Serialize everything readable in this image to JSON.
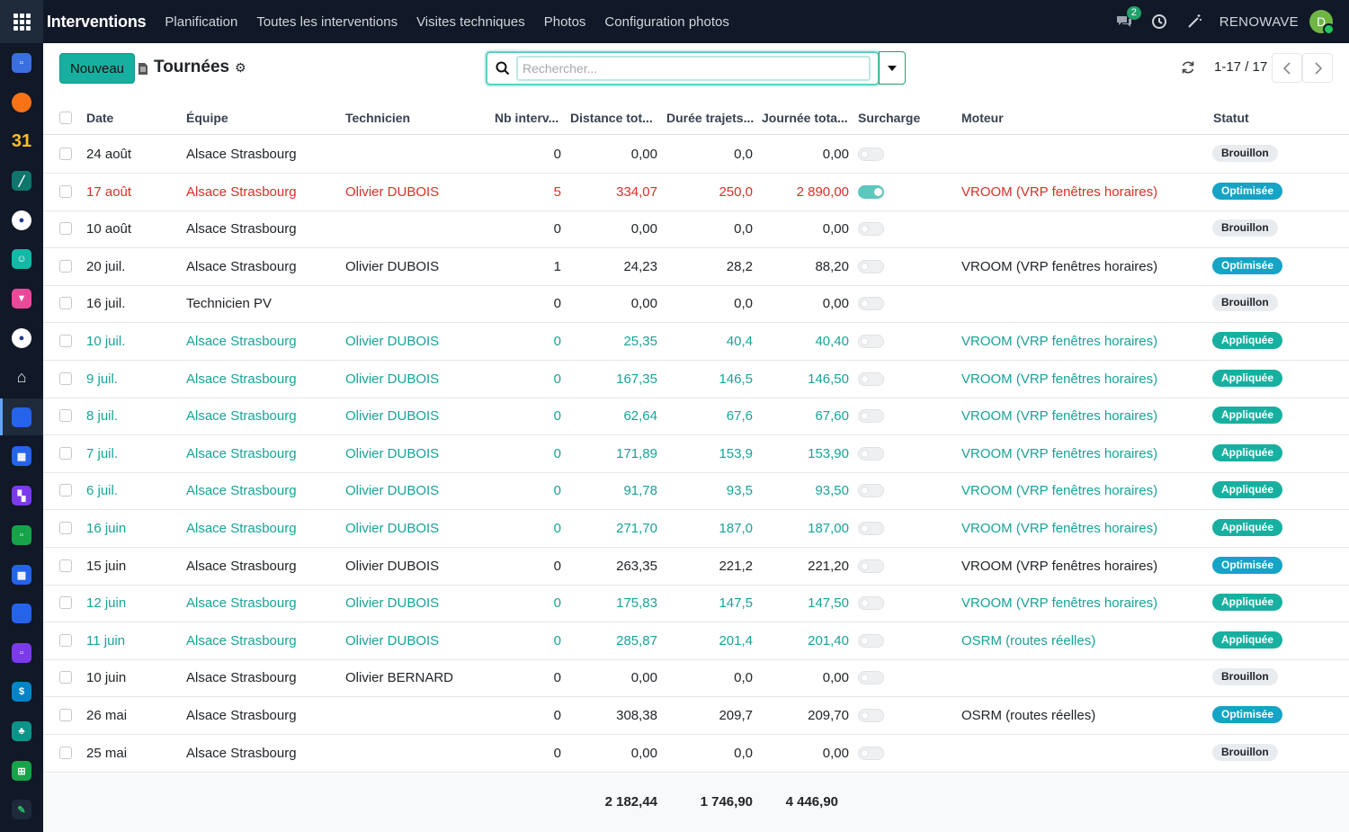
{
  "app": {
    "name": "Interventions",
    "menu": [
      "Planification",
      "Toutes les interventions",
      "Visites techniques",
      "Photos",
      "Configuration photos"
    ],
    "chat_count": "2",
    "company": "RENOWAVE",
    "avatar_letter": "D"
  },
  "control": {
    "new_label": "Nouveau",
    "title": "Tournées",
    "search_placeholder": "Rechercher...",
    "pager": "1-17 / 17"
  },
  "columns": {
    "date": "Date",
    "equipe": "Équipe",
    "technicien": "Technicien",
    "nb": "Nb interv...",
    "distance": "Distance tot...",
    "duree": "Durée trajets...",
    "journee": "Journée tota...",
    "surcharge": "Surcharge",
    "moteur": "Moteur",
    "statut": "Statut"
  },
  "rows": [
    {
      "date": "24 août",
      "equipe": "Alsace Strasbourg",
      "technicien": "",
      "nb": "0",
      "distance": "0,00",
      "duree": "0,0",
      "journee": "0,00",
      "surcharge": false,
      "moteur": "",
      "statut": "Brouillon",
      "tone": "normal"
    },
    {
      "date": "17 août",
      "equipe": "Alsace Strasbourg",
      "technicien": "Olivier DUBOIS",
      "nb": "5",
      "distance": "334,07",
      "duree": "250,0",
      "journee": "2 890,00",
      "surcharge": true,
      "moteur": "VROOM (VRP fenêtres horaires)",
      "statut": "Optimisée",
      "tone": "red"
    },
    {
      "date": "10 août",
      "equipe": "Alsace Strasbourg",
      "technicien": "",
      "nb": "0",
      "distance": "0,00",
      "duree": "0,0",
      "journee": "0,00",
      "surcharge": false,
      "moteur": "",
      "statut": "Brouillon",
      "tone": "normal"
    },
    {
      "date": "20 juil.",
      "equipe": "Alsace Strasbourg",
      "technicien": "Olivier DUBOIS",
      "nb": "1",
      "distance": "24,23",
      "duree": "28,2",
      "journee": "88,20",
      "surcharge": false,
      "moteur": "VROOM (VRP fenêtres horaires)",
      "statut": "Optimisée",
      "tone": "normal"
    },
    {
      "date": "16 juil.",
      "equipe": "Technicien PV",
      "technicien": "",
      "nb": "0",
      "distance": "0,00",
      "duree": "0,0",
      "journee": "0,00",
      "surcharge": false,
      "moteur": "",
      "statut": "Brouillon",
      "tone": "normal"
    },
    {
      "date": "10 juil.",
      "equipe": "Alsace Strasbourg",
      "technicien": "Olivier DUBOIS",
      "nb": "0",
      "distance": "25,35",
      "duree": "40,4",
      "journee": "40,40",
      "surcharge": false,
      "moteur": "VROOM (VRP fenêtres horaires)",
      "statut": "Appliquée",
      "tone": "teal"
    },
    {
      "date": "9 juil.",
      "equipe": "Alsace Strasbourg",
      "technicien": "Olivier DUBOIS",
      "nb": "0",
      "distance": "167,35",
      "duree": "146,5",
      "journee": "146,50",
      "surcharge": false,
      "moteur": "VROOM (VRP fenêtres horaires)",
      "statut": "Appliquée",
      "tone": "teal"
    },
    {
      "date": "8 juil.",
      "equipe": "Alsace Strasbourg",
      "technicien": "Olivier DUBOIS",
      "nb": "0",
      "distance": "62,64",
      "duree": "67,6",
      "journee": "67,60",
      "surcharge": false,
      "moteur": "VROOM (VRP fenêtres horaires)",
      "statut": "Appliquée",
      "tone": "teal"
    },
    {
      "date": "7 juil.",
      "equipe": "Alsace Strasbourg",
      "technicien": "Olivier DUBOIS",
      "nb": "0",
      "distance": "171,89",
      "duree": "153,9",
      "journee": "153,90",
      "surcharge": false,
      "moteur": "VROOM (VRP fenêtres horaires)",
      "statut": "Appliquée",
      "tone": "teal"
    },
    {
      "date": "6 juil.",
      "equipe": "Alsace Strasbourg",
      "technicien": "Olivier DUBOIS",
      "nb": "0",
      "distance": "91,78",
      "duree": "93,5",
      "journee": "93,50",
      "surcharge": false,
      "moteur": "VROOM (VRP fenêtres horaires)",
      "statut": "Appliquée",
      "tone": "teal"
    },
    {
      "date": "16 juin",
      "equipe": "Alsace Strasbourg",
      "technicien": "Olivier DUBOIS",
      "nb": "0",
      "distance": "271,70",
      "duree": "187,0",
      "journee": "187,00",
      "surcharge": false,
      "moteur": "VROOM (VRP fenêtres horaires)",
      "statut": "Appliquée",
      "tone": "teal"
    },
    {
      "date": "15 juin",
      "equipe": "Alsace Strasbourg",
      "technicien": "Olivier DUBOIS",
      "nb": "0",
      "distance": "263,35",
      "duree": "221,2",
      "journee": "221,20",
      "surcharge": false,
      "moteur": "VROOM (VRP fenêtres horaires)",
      "statut": "Optimisée",
      "tone": "normal"
    },
    {
      "date": "12 juin",
      "equipe": "Alsace Strasbourg",
      "technicien": "Olivier DUBOIS",
      "nb": "0",
      "distance": "175,83",
      "duree": "147,5",
      "journee": "147,50",
      "surcharge": false,
      "moteur": "VROOM (VRP fenêtres horaires)",
      "statut": "Appliquée",
      "tone": "teal"
    },
    {
      "date": "11 juin",
      "equipe": "Alsace Strasbourg",
      "technicien": "Olivier DUBOIS",
      "nb": "0",
      "distance": "285,87",
      "duree": "201,4",
      "journee": "201,40",
      "surcharge": false,
      "moteur": "OSRM (routes réelles)",
      "statut": "Appliquée",
      "tone": "teal"
    },
    {
      "date": "10 juin",
      "equipe": "Alsace Strasbourg",
      "technicien": "Olivier BERNARD",
      "nb": "0",
      "distance": "0,00",
      "duree": "0,0",
      "journee": "0,00",
      "surcharge": false,
      "moteur": "",
      "statut": "Brouillon",
      "tone": "normal"
    },
    {
      "date": "26 mai",
      "equipe": "Alsace Strasbourg",
      "technicien": "",
      "nb": "0",
      "distance": "308,38",
      "duree": "209,7",
      "journee": "209,70",
      "surcharge": false,
      "moteur": "OSRM (routes réelles)",
      "statut": "Optimisée",
      "tone": "normal"
    },
    {
      "date": "25 mai",
      "equipe": "Alsace Strasbourg",
      "technicien": "",
      "nb": "0",
      "distance": "0,00",
      "duree": "0,0",
      "journee": "0,00",
      "surcharge": false,
      "moteur": "",
      "statut": "Brouillon",
      "tone": "normal"
    }
  ],
  "totals": {
    "distance": "2 182,44",
    "duree": "1 746,90",
    "journee": "4 446,90"
  },
  "colors": {
    "primary": "#17b0a0",
    "info": "#15a3c6",
    "danger": "#d93025",
    "navbar": "#111827"
  }
}
